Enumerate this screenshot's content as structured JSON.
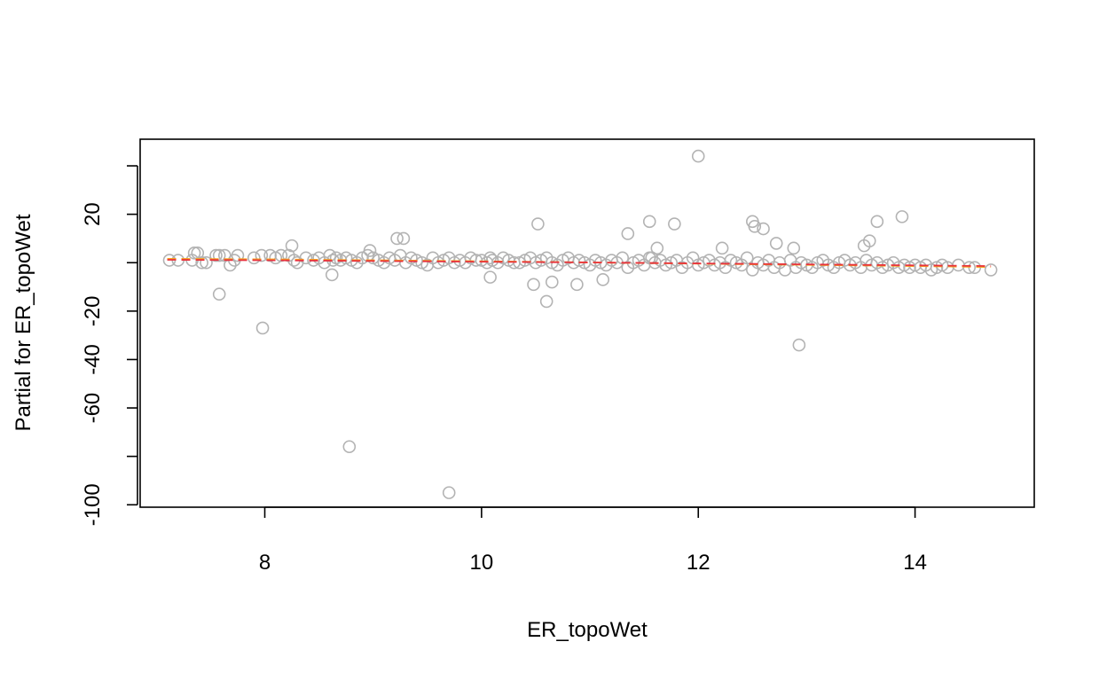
{
  "chart_data": {
    "type": "scatter",
    "title": "",
    "xlabel": "ER_topoWet",
    "ylabel": "Partial for ER_topoWet",
    "xlim": [
      6.85,
      15.1
    ],
    "ylim": [
      -101,
      51
    ],
    "x_ticks": [
      8,
      10,
      12,
      14
    ],
    "x_tick_labels": [
      "8",
      "10",
      "12",
      "14"
    ],
    "y_ticks": [
      -100,
      -80,
      -60,
      -40,
      -20,
      0,
      20,
      40
    ],
    "y_tick_labels": [
      "-100",
      "",
      "-60",
      "-40",
      "-20",
      "",
      "20",
      ""
    ],
    "grid": false,
    "legend": "none",
    "point_color": "#b3b3b3",
    "series": [
      {
        "kind": "points",
        "color": "#b3b3b3",
        "x": [
          7.12,
          7.2,
          7.33,
          7.38,
          7.42,
          7.46,
          7.55,
          7.58,
          7.63,
          7.68,
          7.72,
          7.75,
          7.9,
          7.97,
          8.05,
          8.1,
          8.15,
          8.22,
          8.27,
          8.3,
          8.38,
          8.45,
          8.5,
          8.55,
          8.6,
          8.63,
          8.66,
          8.7,
          8.75,
          8.8,
          8.85,
          8.9,
          8.95,
          9.0,
          9.05,
          9.1,
          9.15,
          9.2,
          9.25,
          9.3,
          9.35,
          9.4,
          9.45,
          9.5,
          9.55,
          9.6,
          9.65,
          9.7,
          9.75,
          9.8,
          9.85,
          9.9,
          9.95,
          10.0,
          10.05,
          10.08,
          10.1,
          10.15,
          10.2,
          10.25,
          10.3,
          10.35,
          10.4,
          10.45,
          10.5,
          10.55,
          10.6,
          10.65,
          10.7,
          10.75,
          10.8,
          10.85,
          10.9,
          10.95,
          11.0,
          11.05,
          11.1,
          11.15,
          11.2,
          11.25,
          11.3,
          11.35,
          11.4,
          11.45,
          11.5,
          11.55,
          11.6,
          11.65,
          11.7,
          11.75,
          11.8,
          11.85,
          11.9,
          11.95,
          12.0,
          12.05,
          12.1,
          12.15,
          12.2,
          12.25,
          12.3,
          12.35,
          12.4,
          12.45,
          12.5,
          12.55,
          12.6,
          12.65,
          12.7,
          12.75,
          12.8,
          12.85,
          12.9,
          12.95,
          13.0,
          13.05,
          13.1,
          13.15,
          13.2,
          13.25,
          13.3,
          13.35,
          13.4,
          13.45,
          13.5,
          13.55,
          13.6,
          13.65,
          13.7,
          13.75,
          13.8,
          13.85,
          13.9,
          13.95,
          14.0,
          14.05,
          14.1,
          14.15,
          14.2,
          14.25,
          14.3,
          14.4,
          14.5,
          14.55,
          14.7,
          7.58,
          7.98,
          8.78,
          9.7,
          10.52,
          10.6,
          10.65,
          10.88,
          11.12,
          11.35,
          11.55,
          11.57,
          11.78,
          12.0,
          12.5,
          12.52,
          12.6,
          12.93,
          13.53,
          13.58,
          13.65,
          13.88,
          9.22,
          9.28,
          11.62,
          12.72,
          12.22,
          12.88,
          10.08,
          10.48,
          8.62,
          8.97,
          8.25,
          7.35
        ],
        "y": [
          1,
          1,
          1,
          4,
          0,
          0,
          3,
          3,
          3,
          -1,
          1,
          3,
          2,
          3,
          3,
          2,
          3,
          3,
          1,
          0,
          2,
          1,
          2,
          0,
          3,
          1,
          2,
          1,
          2,
          1,
          0,
          2,
          3,
          2,
          1,
          0,
          2,
          1,
          3,
          0,
          2,
          1,
          0,
          -1,
          2,
          0,
          1,
          2,
          0,
          1,
          0,
          2,
          1,
          1,
          0,
          2,
          1,
          0,
          2,
          1,
          0,
          0,
          1,
          2,
          0,
          1,
          2,
          0,
          -1,
          1,
          2,
          0,
          1,
          0,
          -1,
          1,
          0,
          -1,
          1,
          0,
          2,
          -2,
          0,
          1,
          -1,
          2,
          0,
          1,
          -1,
          0,
          1,
          -2,
          0,
          2,
          -1,
          0,
          1,
          -1,
          0,
          -2,
          1,
          0,
          -1,
          2,
          -3,
          0,
          -1,
          1,
          -2,
          0,
          -3,
          1,
          -2,
          0,
          -1,
          -2,
          0,
          1,
          -1,
          -2,
          0,
          1,
          -1,
          0,
          -2,
          1,
          -1,
          0,
          -2,
          -1,
          0,
          -2,
          -1,
          -2,
          -1,
          -2,
          -1,
          -3,
          -2,
          -1,
          -2,
          -1,
          -2,
          -2,
          -3,
          -13,
          -27,
          -76,
          -95,
          16,
          -16,
          -8,
          -9,
          -7,
          12,
          17,
          2,
          16,
          44,
          17,
          15,
          14,
          -34,
          7,
          9,
          17,
          19,
          10,
          10,
          6,
          8,
          6,
          6,
          -6,
          -9,
          -5,
          5,
          7,
          4
        ]
      },
      {
        "kind": "line",
        "color": "#f5a623",
        "x": [
          7.1,
          8.0,
          9.0,
          10.0,
          11.0,
          12.0,
          13.0,
          14.0,
          14.7
        ],
        "y": [
          1.6,
          1.4,
          1.0,
          0.6,
          0.1,
          -0.4,
          -0.9,
          -1.4,
          -1.8
        ]
      },
      {
        "kind": "line",
        "color": "#e8323c",
        "x": [
          7.1,
          8.0,
          9.0,
          10.0,
          11.0,
          12.0,
          13.0,
          14.0,
          14.7
        ],
        "y": [
          1.2,
          1.0,
          0.7,
          0.4,
          0.1,
          -0.3,
          -0.7,
          -1.1,
          -1.4
        ]
      }
    ]
  }
}
